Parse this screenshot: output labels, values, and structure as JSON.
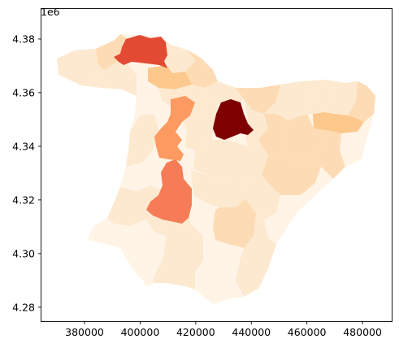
{
  "chart_data": {
    "type": "choropleth",
    "colormap": "OrRd",
    "x_ticks": [
      380000,
      400000,
      420000,
      440000,
      460000,
      480000
    ],
    "x_tick_labels": [
      "380000",
      "400000",
      "420000",
      "440000",
      "460000",
      "480000"
    ],
    "y_ticks": [
      4.28,
      4.3,
      4.32,
      4.34,
      4.36,
      4.38
    ],
    "y_tick_labels": [
      "4.28",
      "4.30",
      "4.32",
      "4.34",
      "4.36",
      "4.38"
    ],
    "y_offset_label": "1e6",
    "xlim": [
      364500,
      490500
    ],
    "ylim": [
      4.2748,
      4.3912
    ],
    "grid": false,
    "legend": "none",
    "palette": {
      "lightest": "#fff4e6",
      "light": "#fde9d0",
      "pale": "#fddcb5",
      "mid": "#fdc88c",
      "orange": "#fc9a62",
      "salmon": "#f67c57",
      "red": "#e34a33",
      "darkred": "#7f0000"
    }
  }
}
